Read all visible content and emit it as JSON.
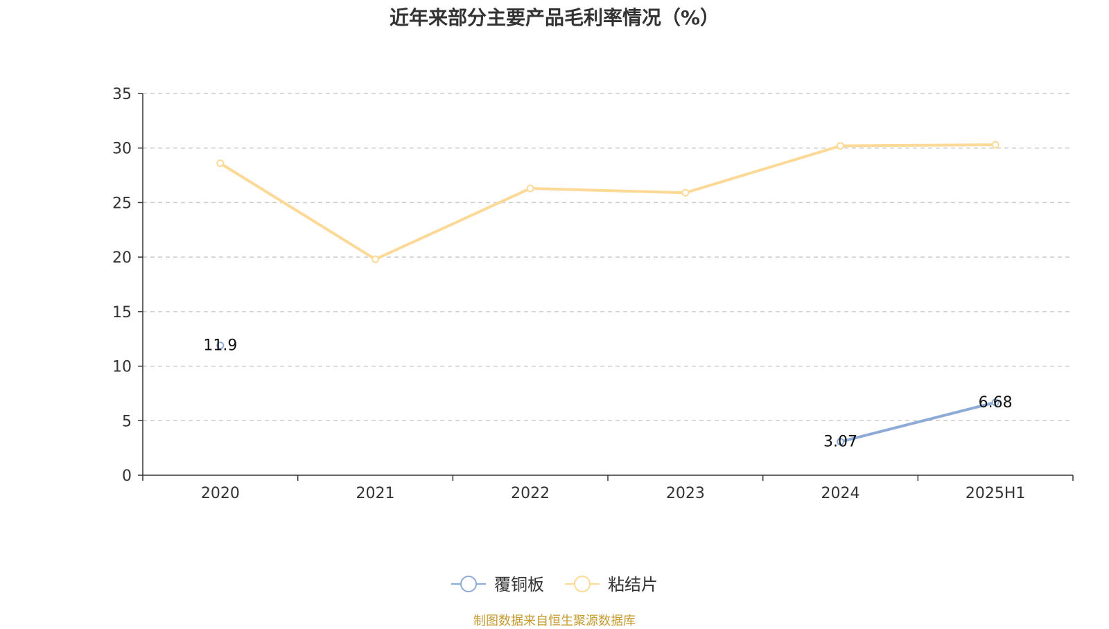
{
  "chart_data": {
    "type": "line",
    "title": "近年来部分主要产品毛利率情况（%）",
    "categories": [
      "2020",
      "2021",
      "2022",
      "2023",
      "2024",
      "2025H1"
    ],
    "ylim": [
      0,
      35
    ],
    "yticks": [
      0,
      5,
      10,
      15,
      20,
      25,
      30,
      35
    ],
    "grid": true,
    "legend_position": "bottom-center",
    "series": [
      {
        "name": "覆铜板",
        "color": "#8eaad6",
        "values": [
          11.9,
          null,
          null,
          null,
          3.07,
          6.68
        ],
        "labels": [
          "11.9",
          null,
          null,
          null,
          "3.07",
          "6.68"
        ]
      },
      {
        "name": "粘结片",
        "color": "#fcd996",
        "values": [
          28.6,
          19.8,
          26.3,
          25.9,
          30.2,
          30.3
        ],
        "labels": [
          null,
          null,
          null,
          null,
          null,
          null
        ]
      }
    ]
  },
  "source": "制图数据来自恒生聚源数据库"
}
